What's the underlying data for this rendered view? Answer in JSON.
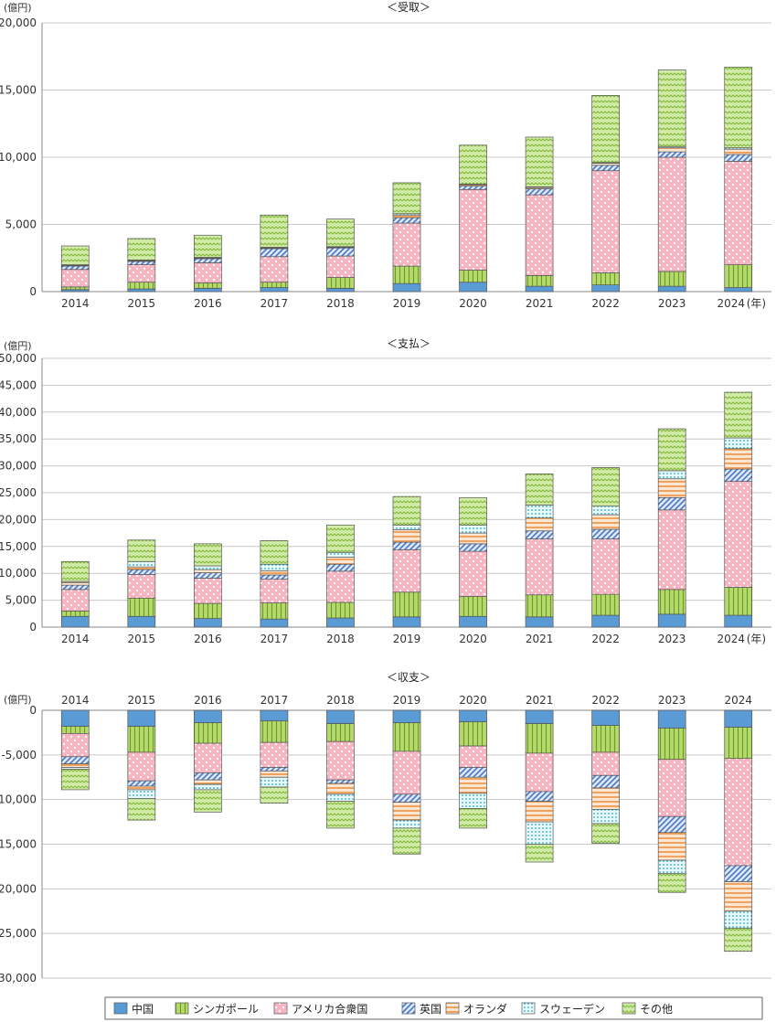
{
  "chart_data": [
    {
      "type": "bar",
      "stacked": true,
      "title": "＜受取＞",
      "unit_label": "(億円)",
      "x_unit_suffix": "(年)",
      "categories": [
        "2014",
        "2015",
        "2016",
        "2017",
        "2018",
        "2019",
        "2020",
        "2021",
        "2022",
        "2023",
        "2024"
      ],
      "ylim": [
        0,
        20000
      ],
      "yticks": [
        0,
        5000,
        10000,
        15000,
        20000
      ],
      "ytick_labels": [
        "0",
        "5,000",
        "10,000",
        "15,000",
        "20,000"
      ],
      "grid": true,
      "series": [
        {
          "name": "中国",
          "values": [
            150,
            200,
            250,
            300,
            250,
            600,
            700,
            400,
            500,
            400,
            300
          ]
        },
        {
          "name": "シンガポール",
          "values": [
            200,
            500,
            400,
            400,
            800,
            1300,
            900,
            800,
            900,
            1100,
            1700
          ]
        },
        {
          "name": "アメリカ合衆国",
          "values": [
            1300,
            1300,
            1500,
            1900,
            1600,
            3200,
            6000,
            6000,
            7600,
            8500,
            7700
          ]
        },
        {
          "name": "英国",
          "values": [
            250,
            250,
            300,
            600,
            600,
            400,
            250,
            450,
            400,
            400,
            500
          ]
        },
        {
          "name": "オランダ",
          "values": [
            50,
            50,
            50,
            50,
            50,
            200,
            100,
            100,
            150,
            300,
            400
          ]
        },
        {
          "name": "スウェーデン",
          "values": [
            50,
            50,
            50,
            50,
            50,
            100,
            50,
            50,
            50,
            100,
            100
          ]
        },
        {
          "name": "その他",
          "values": [
            1400,
            1600,
            1650,
            2400,
            2050,
            2300,
            2900,
            3700,
            5000,
            5700,
            6000
          ]
        }
      ]
    },
    {
      "type": "bar",
      "stacked": true,
      "title": "＜支払＞",
      "unit_label": "(億円)",
      "x_unit_suffix": "(年)",
      "categories": [
        "2014",
        "2015",
        "2016",
        "2017",
        "2018",
        "2019",
        "2020",
        "2021",
        "2022",
        "2023",
        "2024"
      ],
      "ylim": [
        0,
        50000
      ],
      "yticks": [
        0,
        5000,
        10000,
        15000,
        20000,
        25000,
        30000,
        35000,
        40000,
        45000,
        50000
      ],
      "ytick_labels": [
        "0",
        "5,000",
        "10,000",
        "15,000",
        "20,000",
        "25,000",
        "30,000",
        "35,000",
        "40,000",
        "45,000",
        "50,000"
      ],
      "grid": true,
      "series": [
        {
          "name": "中国",
          "values": [
            2000,
            2000,
            1600,
            1500,
            1700,
            1900,
            2000,
            1900,
            2200,
            2400,
            2200
          ]
        },
        {
          "name": "シンガポール",
          "values": [
            1000,
            3400,
            2800,
            3000,
            2900,
            4600,
            3700,
            4100,
            3900,
            4600,
            5200
          ]
        },
        {
          "name": "アメリカ合衆国",
          "values": [
            4000,
            4400,
            4700,
            4400,
            5800,
            7900,
            8400,
            10400,
            10300,
            14800,
            19700
          ]
        },
        {
          "name": "英国",
          "values": [
            800,
            900,
            1000,
            800,
            1300,
            1400,
            1400,
            1500,
            1800,
            2300,
            2300
          ]
        },
        {
          "name": "オランダ",
          "values": [
            500,
            500,
            600,
            800,
            1300,
            2300,
            2000,
            2400,
            2700,
            3500,
            3800
          ]
        },
        {
          "name": "スウェーデン",
          "values": [
            200,
            1000,
            700,
            1200,
            900,
            900,
            1500,
            2400,
            1600,
            1500,
            2000
          ]
        },
        {
          "name": "その他",
          "values": [
            3700,
            4000,
            4100,
            4400,
            5100,
            5300,
            5100,
            5800,
            7200,
            7800,
            8500
          ]
        }
      ]
    },
    {
      "type": "bar",
      "stacked": true,
      "title": "＜収支＞",
      "unit_label": "(億円)",
      "categories": [
        "2014",
        "2015",
        "2016",
        "2017",
        "2018",
        "2019",
        "2020",
        "2021",
        "2022",
        "2023",
        "2024"
      ],
      "ylim": [
        -30000,
        0
      ],
      "yticks": [
        0,
        -5000,
        -10000,
        -15000,
        -20000,
        -25000,
        -30000
      ],
      "ytick_labels": [
        "0",
        "-5,000",
        "-10,000",
        "-15,000",
        "-20,000",
        "-25,000",
        "-30,000"
      ],
      "grid": true,
      "series": [
        {
          "name": "中国",
          "values": [
            -1800,
            -1800,
            -1400,
            -1200,
            -1500,
            -1400,
            -1300,
            -1500,
            -1700,
            -2000,
            -1900
          ]
        },
        {
          "name": "シンガポール",
          "values": [
            -800,
            -2900,
            -2300,
            -2400,
            -2000,
            -3200,
            -2700,
            -3300,
            -3000,
            -3500,
            -3500
          ]
        },
        {
          "name": "アメリカ合衆国",
          "values": [
            -2600,
            -3200,
            -3300,
            -2800,
            -4300,
            -4800,
            -2400,
            -4300,
            -2600,
            -6400,
            -12000
          ]
        },
        {
          "name": "英国",
          "values": [
            -800,
            -600,
            -800,
            -400,
            -400,
            -900,
            -1100,
            -1100,
            -1400,
            -1800,
            -1800
          ]
        },
        {
          "name": "オランダ",
          "values": [
            -400,
            -400,
            -500,
            -700,
            -1200,
            -2000,
            -1800,
            -2300,
            -2400,
            -3100,
            -3300
          ]
        },
        {
          "name": "スウェーデン",
          "values": [
            -200,
            -1000,
            -600,
            -1100,
            -800,
            -900,
            -1700,
            -2500,
            -1600,
            -1500,
            -1900
          ]
        },
        {
          "name": "その他",
          "values": [
            -2300,
            -2400,
            -2500,
            -1800,
            -3000,
            -2900,
            -2200,
            -2000,
            -2200,
            -2100,
            -2600
          ]
        }
      ]
    }
  ],
  "legend": {
    "position": "bottom",
    "items": [
      {
        "name": "中国",
        "color": "#5b9bd5",
        "pattern": "solid"
      },
      {
        "name": "シンガポール",
        "color": "#b5d96a",
        "pattern": "vertical-lines"
      },
      {
        "name": "アメリカ合衆国",
        "color": "#f7b3c0",
        "pattern": "dots"
      },
      {
        "name": "英国",
        "color": "#a4bff0",
        "pattern": "diagonal-lines"
      },
      {
        "name": "オランダ",
        "color": "#f8c9a0",
        "pattern": "horizontal-lines"
      },
      {
        "name": "スウェーデン",
        "color": "#a8e6ee",
        "pattern": "dot-grid"
      },
      {
        "name": "その他",
        "color": "#c6e49a",
        "pattern": "zigzag"
      }
    ]
  }
}
